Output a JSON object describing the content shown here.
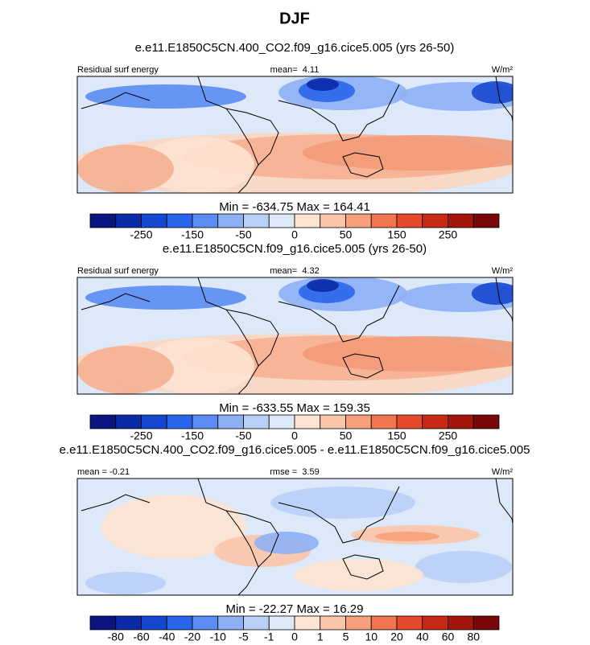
{
  "title": "DJF",
  "panels": [
    {
      "title": "e.e11.E1850C5CN.400_CO2.f09_g16.cice5.005 (yrs 26-50)",
      "labels": [
        "Residual surf energy",
        "mean=  4.11",
        "W/m²"
      ],
      "stats": "Min = -634.75 Max = 164.41",
      "colorbar": {
        "colors": [
          "#0a1580",
          "#0b2aa8",
          "#1448d0",
          "#2a66ec",
          "#5a8cf2",
          "#8db0f5",
          "#b8cff7",
          "#dde9f8",
          "#fde3d2",
          "#fbc5a7",
          "#f6a07b",
          "#f07550",
          "#e44a2b",
          "#c92a15",
          "#a3150d",
          "#7a0707"
        ],
        "ticks": [
          -250,
          -150,
          -50,
          0,
          50,
          150,
          250
        ]
      }
    },
    {
      "title": "e.e11.E1850C5CN.f09_g16.cice5.005 (yrs 26-50)",
      "labels": [
        "Residual surf energy",
        "mean=  4.32",
        "W/m²"
      ],
      "stats": "Min = -633.55 Max = 159.35",
      "colorbar": {
        "colors": [
          "#0a1580",
          "#0b2aa8",
          "#1448d0",
          "#2a66ec",
          "#5a8cf2",
          "#8db0f5",
          "#b8cff7",
          "#dde9f8",
          "#fde3d2",
          "#fbc5a7",
          "#f6a07b",
          "#f07550",
          "#e44a2b",
          "#c92a15",
          "#a3150d",
          "#7a0707"
        ],
        "ticks": [
          -250,
          -150,
          -50,
          0,
          50,
          150,
          250
        ]
      }
    },
    {
      "title": "e.e11.E1850C5CN.400_CO2.f09_g16.cice5.005 - e.e11.E1850C5CN.f09_g16.cice5.005",
      "labels": [
        "mean = -0.21",
        "rmse =  3.59",
        "W/m²"
      ],
      "stats": "Min = -22.27 Max = 16.29",
      "colorbar": {
        "colors": [
          "#0a1580",
          "#0b2aa8",
          "#1448d0",
          "#2a66ec",
          "#5a8cf2",
          "#8db0f5",
          "#b8cff7",
          "#dde9f8",
          "#fde3d2",
          "#fbc5a7",
          "#f6a07b",
          "#f07550",
          "#e44a2b",
          "#c92a15",
          "#a3150d",
          "#7a0707"
        ],
        "ticks": [
          -80,
          -60,
          -40,
          -20,
          -10,
          -5,
          -1,
          0,
          1,
          5,
          10,
          20,
          40,
          60,
          80
        ]
      }
    }
  ]
}
